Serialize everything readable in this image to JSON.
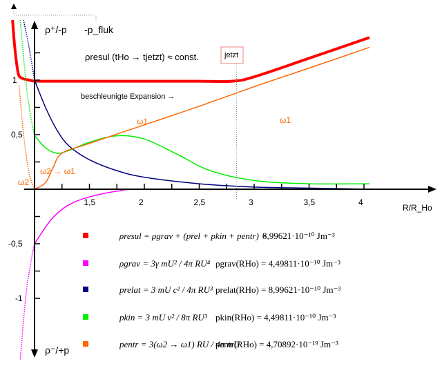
{
  "chart_data": {
    "type": "line",
    "xlabel": "R/R_Ho",
    "ylabel_top": "ρ⁺/-p",
    "ylabel_bottom": "ρ⁻/+p",
    "fluk_label": "-p_fluk",
    "xlim": [
      0.8,
      4.6
    ],
    "ylim": [
      -1.5,
      1.6
    ],
    "x_ticks": [
      {
        "v": 1.5,
        "label": "1,5"
      },
      {
        "v": 2,
        "label": "2"
      },
      {
        "v": 2.5,
        "label": "2,5"
      },
      {
        "v": 3,
        "label": "3"
      },
      {
        "v": 3.5,
        "label": "3,5"
      },
      {
        "v": 4,
        "label": "4"
      }
    ],
    "y_ticks": [
      {
        "v": 1,
        "label": "1"
      },
      {
        "v": 0.5,
        "label": "0,5"
      },
      {
        "v": -0.5,
        "label": "-0,5"
      },
      {
        "v": -1,
        "label": "-1"
      }
    ],
    "annotations": {
      "const": "ρresul (tHo → tjetzt) ≈ const.",
      "expansion": "beschleunigte Expansion →",
      "jetzt": "jetzt",
      "jetzt_x": 2.84,
      "omega1": "ω1",
      "omega2": "ω2",
      "omega21": "ω2 → ω1"
    },
    "series": [
      {
        "key": "resul",
        "color": "#ff0000",
        "points": [
          [
            1,
            0.99
          ],
          [
            1.5,
            0.99
          ],
          [
            2,
            0.99
          ],
          [
            2.5,
            0.99
          ],
          [
            2.8,
            0.99
          ],
          [
            3,
            1.03
          ],
          [
            3.5,
            1.2
          ],
          [
            4.05,
            1.39
          ]
        ],
        "dotted": [
          [
            0.8,
            1.55
          ],
          [
            0.82,
            1.3
          ],
          [
            0.85,
            1.07
          ],
          [
            0.88,
            1.02
          ],
          [
            0.95,
            1.0
          ],
          [
            1,
            0.99
          ]
        ]
      },
      {
        "key": "grav",
        "color": "#ff00ff",
        "points": [
          [
            1,
            -0.5
          ],
          [
            1.15,
            -0.28
          ],
          [
            1.3,
            -0.15
          ],
          [
            1.5,
            -0.07
          ],
          [
            1.8,
            -0.01
          ],
          [
            2,
            0
          ],
          [
            3,
            0
          ],
          [
            4.05,
            0
          ]
        ],
        "dotted": [
          [
            0.87,
            -1.56
          ],
          [
            0.9,
            -1.2
          ],
          [
            0.93,
            -0.9
          ],
          [
            0.97,
            -0.65
          ],
          [
            1,
            -0.5
          ]
        ]
      },
      {
        "key": "relat",
        "color": "#000080",
        "points": [
          [
            1,
            1
          ],
          [
            1.1,
            0.75
          ],
          [
            1.2,
            0.55
          ],
          [
            1.31,
            0.4
          ],
          [
            1.5,
            0.27
          ],
          [
            1.75,
            0.17
          ],
          [
            2,
            0.11
          ],
          [
            2.5,
            0.05
          ],
          [
            3,
            0.02
          ],
          [
            3.5,
            0.01
          ],
          [
            4.05,
            0
          ]
        ],
        "dotted": [
          [
            0.9,
            1.55
          ],
          [
            0.95,
            1.3
          ],
          [
            1,
            1
          ]
        ]
      },
      {
        "key": "kin",
        "color": "#00ee00",
        "points": [
          [
            1,
            0.49
          ],
          [
            1.1,
            0.38
          ],
          [
            1.2,
            0.33
          ],
          [
            1.3,
            0.35
          ],
          [
            1.5,
            0.43
          ],
          [
            1.75,
            0.49
          ],
          [
            2,
            0.46
          ],
          [
            2.3,
            0.32
          ],
          [
            2.6,
            0.17
          ],
          [
            3,
            0.08
          ],
          [
            3.5,
            0.05
          ],
          [
            4.05,
            0.05
          ]
        ],
        "dotted": [
          [
            0.87,
            1.55
          ],
          [
            0.92,
            1.0
          ],
          [
            0.96,
            0.7
          ],
          [
            1,
            0.49
          ]
        ]
      },
      {
        "key": "entr",
        "color": "#ff6600",
        "points": [
          [
            1,
            0
          ],
          [
            1.1,
            0.06
          ],
          [
            1.17,
            0.2
          ],
          [
            1.25,
            0.33
          ],
          [
            1.5,
            0.42
          ],
          [
            2,
            0.59
          ],
          [
            2.5,
            0.76
          ],
          [
            3,
            0.94
          ],
          [
            3.5,
            1.11
          ],
          [
            4.05,
            1.3
          ]
        ],
        "dotted": [
          [
            0.86,
            0.95
          ],
          [
            0.9,
            0.5
          ],
          [
            0.95,
            0.15
          ],
          [
            1,
            0
          ]
        ]
      }
    ]
  },
  "legend": [
    {
      "color": "#ff0000",
      "formula": "ρresul = ρgrav + (prel + pkin + pentr) =",
      "value": "8,99621·10⁻¹⁰ Jm⁻³"
    },
    {
      "color": "#ff00ff",
      "formula": "ρgrav = 3γ mU² / 4π RU⁴",
      "value": "ρgrav(RHo) = 4,49811·10⁻¹⁰ Jm⁻³"
    },
    {
      "color": "#000080",
      "formula": "prelat = 3 mU c² / 4π RU³",
      "value": "prelat(RHo) = 8,99621·10⁻¹⁰ Jm⁻³"
    },
    {
      "color": "#00ee00",
      "formula": "pkin = 3 mU v² / 8π RU³",
      "value": "pkin(RHo) = 4,49811·10⁻¹⁰ Jm⁻³"
    },
    {
      "color": "#ff6600",
      "formula": "pentr = 3(ω2 → ω1) RU / 4π mU",
      "value": "pentr(RHo) = 4,70892·10⁻¹⁹ Jm⁻³"
    }
  ]
}
